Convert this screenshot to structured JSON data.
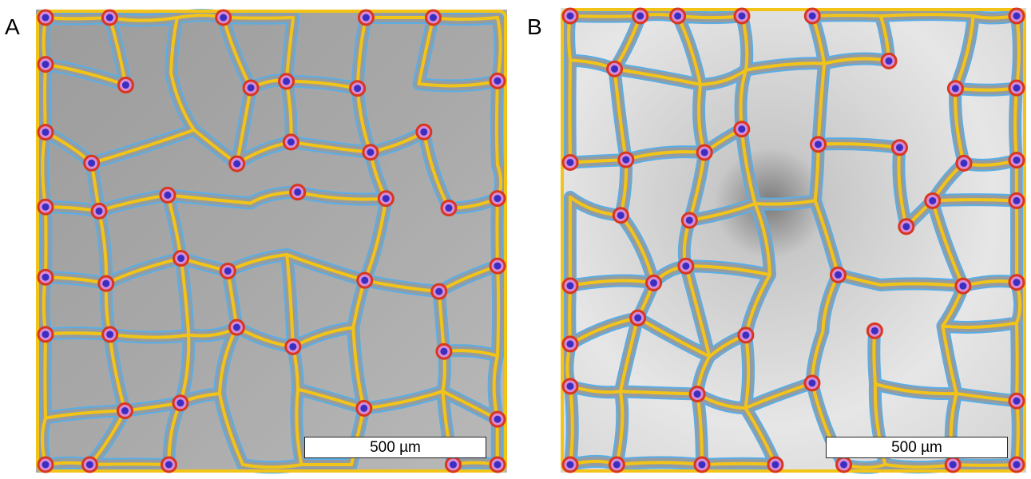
{
  "panels": [
    {
      "label": "A",
      "scale_bar": "500 µm"
    },
    {
      "label": "B",
      "scale_bar": "500 µm"
    }
  ]
}
